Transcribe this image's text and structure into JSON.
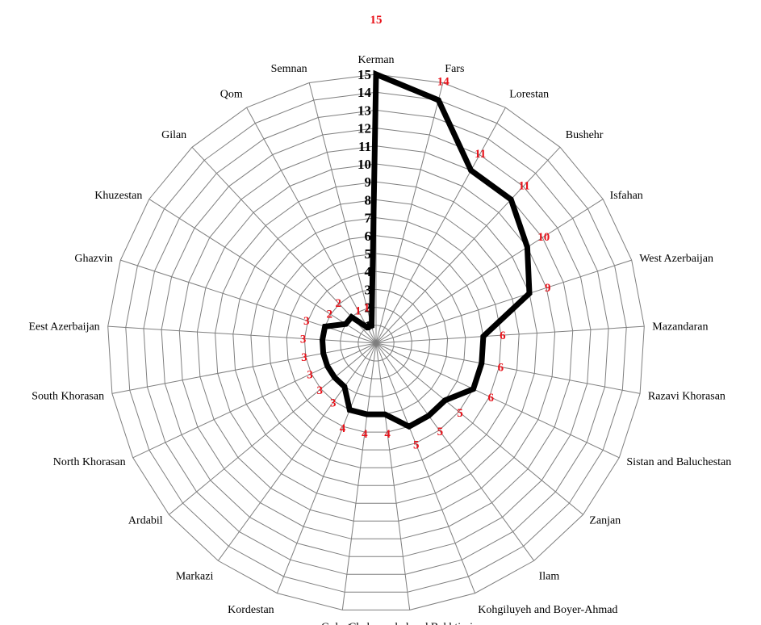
{
  "chart_data": {
    "type": "radar",
    "categories": [
      "Kerman",
      "Fars",
      "Lorestan",
      "Bushehr",
      "Isfahan",
      "West Azerbaijan",
      "Mazandaran",
      "Razavi Khorasan",
      "Sistan and Baluchestan",
      "Zanjan",
      "Ilam",
      "Kohgiluyeh and Boyer-Ahmad",
      "Chaharmahal and Bakhtiari",
      "Golestan",
      "Kordestan",
      "Markazi",
      "Ardabil",
      "North Khorasan",
      "South Khorasan",
      "Eest Azerbaijan",
      "Ghazvin",
      "Khuzestan",
      "Gilan",
      "Qom",
      "Semnan"
    ],
    "series": [
      {
        "values": [
          15,
          14,
          11,
          11,
          10,
          9,
          6,
          6,
          6,
          5,
          5,
          5,
          4,
          4,
          4,
          3,
          3,
          3,
          3,
          3,
          3,
          2,
          2,
          1,
          1
        ]
      }
    ],
    "data_labels": [
      "15",
      "14",
      "11",
      "11",
      "10",
      "9",
      "6",
      "6",
      "6",
      "5",
      "5",
      "5",
      "4",
      "4",
      "4",
      "3",
      "3",
      "3",
      "3",
      "3",
      "3",
      "2",
      "2",
      "1",
      "1"
    ],
    "r_ticks": [
      "1",
      "2",
      "3",
      "4",
      "5",
      "6",
      "7",
      "8",
      "9",
      "10",
      "11",
      "12",
      "13",
      "14",
      "15"
    ],
    "rlim": [
      0,
      15
    ],
    "grid": true,
    "legend": "none",
    "colors": {
      "series": "#000000",
      "data_labels": "#e8121a",
      "grid": "#7f7f7f",
      "text": "#000000"
    }
  }
}
